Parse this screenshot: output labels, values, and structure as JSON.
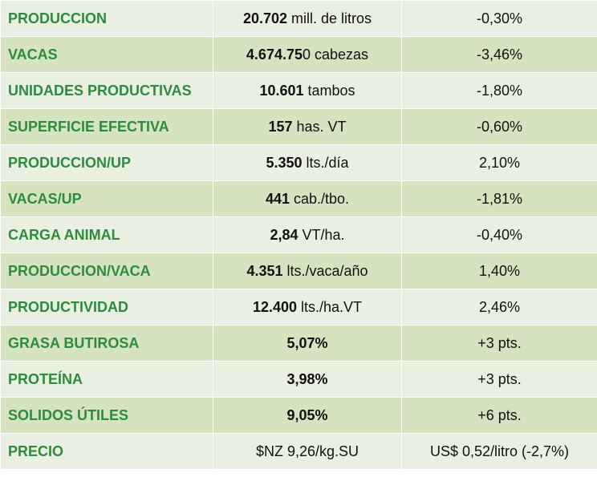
{
  "rows": [
    {
      "label": "PRODUCCION",
      "value_bold": "20.702",
      "value_rest": " mill. de litros",
      "change": "-0,30%"
    },
    {
      "label": "VACAS",
      "value_bold": "4.674.75",
      "value_rest": "0 cabezas",
      "change": "-3,46%"
    },
    {
      "label": "UNIDADES PRODUCTIVAS",
      "value_bold": "10.601",
      "value_rest": " tambos",
      "change": "-1,80%"
    },
    {
      "label": "SUPERFICIE EFECTIVA",
      "value_bold": "157",
      "value_rest": " has. VT",
      "change": "-0,60%"
    },
    {
      "label": "PRODUCCION/UP",
      "value_bold": "5.350",
      "value_rest": " lts./día",
      "change": "2,10%"
    },
    {
      "label": "VACAS/UP",
      "value_bold": "441",
      "value_rest": " cab./tbo.",
      "change": "-1,81%"
    },
    {
      "label": "CARGA ANIMAL",
      "value_bold": "2,84",
      "value_rest": " VT/ha.",
      "change": "-0,40%"
    },
    {
      "label": "PRODUCCION/VACA",
      "value_bold": "4.351",
      "value_rest": " lts./vaca/año",
      "change": "1,40%"
    },
    {
      "label": "PRODUCTIVIDAD",
      "value_bold": "12.400",
      "value_rest": " lts./ha.VT",
      "change": "2,46%"
    },
    {
      "label": "GRASA BUTIROSA",
      "value_bold": "5,07%",
      "value_rest": "",
      "change": "+3 pts."
    },
    {
      "label": "PROTEÍNA",
      "value_bold": "3,98%",
      "value_rest": "",
      "change": "+3 pts."
    },
    {
      "label": "SOLIDOS ÚTILES",
      "value_bold": "9,05%",
      "value_rest": "",
      "change": "+6 pts."
    },
    {
      "label": "PRECIO",
      "value_bold": "",
      "value_rest": "$NZ 9,26/kg.SU",
      "change": "US$ 0,52/litro (-2,7%)"
    }
  ]
}
